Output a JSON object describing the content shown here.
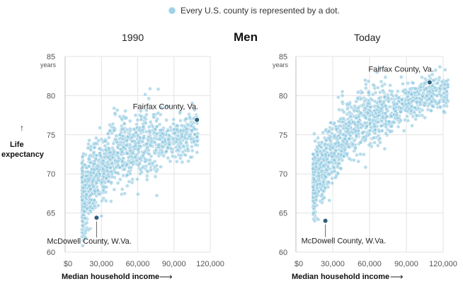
{
  "legend": {
    "label": "Every U.S. county is represented by a dot."
  },
  "headline": "Men",
  "y_axis_title": [
    "Life",
    "expectancy"
  ],
  "x_axis_title": "Median household income",
  "colors": {
    "dot": "#8ec8e0",
    "dot_stroke": "#ffffff",
    "highlight": "#2c5f7c",
    "grid": "#e3e3e3",
    "axis": "#bfbfbf"
  },
  "chart_data": [
    {
      "type": "scatter",
      "title": "1990",
      "xlabel": "Median household income",
      "ylabel": "Life expectancy",
      "xlim": [
        0,
        120000
      ],
      "ylim": [
        60,
        85
      ],
      "x_ticks": [
        0,
        30000,
        60000,
        90000,
        120000
      ],
      "x_tick_labels": [
        "$0",
        "30,000",
        "60,000",
        "90,000",
        "120,000"
      ],
      "y_ticks": [
        60,
        65,
        70,
        75,
        80,
        85
      ],
      "y_tick_labels": [
        "60",
        "65",
        "70",
        "75",
        "80",
        "85"
      ],
      "y_unit_label": "years",
      "cloud": {
        "anchors": [
          [
            15000,
            67.0
          ],
          [
            25000,
            69.5
          ],
          [
            35000,
            71.5
          ],
          [
            45000,
            72.8
          ],
          [
            55000,
            73.4
          ],
          [
            70000,
            74.0
          ],
          [
            90000,
            74.5
          ],
          [
            105000,
            75.5
          ]
        ],
        "spread": 2.2,
        "count": 1300,
        "x_min": 14000,
        "x_max": 110000
      },
      "highlights": [
        {
          "name": "Fairfax County, Va.",
          "x": 109000,
          "y": 76.9
        },
        {
          "name": "McDowell County, W.Va.",
          "x": 26000,
          "y": 64.4
        }
      ]
    },
    {
      "type": "scatter",
      "title": "Today",
      "xlabel": "Median household income",
      "ylabel": "Life expectancy",
      "xlim": [
        0,
        120000
      ],
      "ylim": [
        60,
        85
      ],
      "x_ticks": [
        0,
        30000,
        60000,
        90000,
        120000
      ],
      "x_tick_labels": [
        "$0",
        "30,000",
        "60,000",
        "90,000",
        "120,000"
      ],
      "y_ticks": [
        60,
        65,
        70,
        75,
        80,
        85
      ],
      "y_tick_labels": [
        "60",
        "65",
        "70",
        "75",
        "80",
        "85"
      ],
      "y_unit_label": "years",
      "cloud": {
        "anchors": [
          [
            15000,
            69.0
          ],
          [
            25000,
            71.5
          ],
          [
            35000,
            74.0
          ],
          [
            45000,
            75.5
          ],
          [
            55000,
            76.5
          ],
          [
            70000,
            77.8
          ],
          [
            90000,
            79.0
          ],
          [
            115000,
            80.5
          ]
        ],
        "spread": 2.0,
        "count": 1400,
        "x_min": 14000,
        "x_max": 124000
      },
      "highlights": [
        {
          "name": "Fairfax County, Va.",
          "x": 109000,
          "y": 81.7
        },
        {
          "name": "McDowell County, W.Va.",
          "x": 24000,
          "y": 64.0
        }
      ]
    }
  ]
}
